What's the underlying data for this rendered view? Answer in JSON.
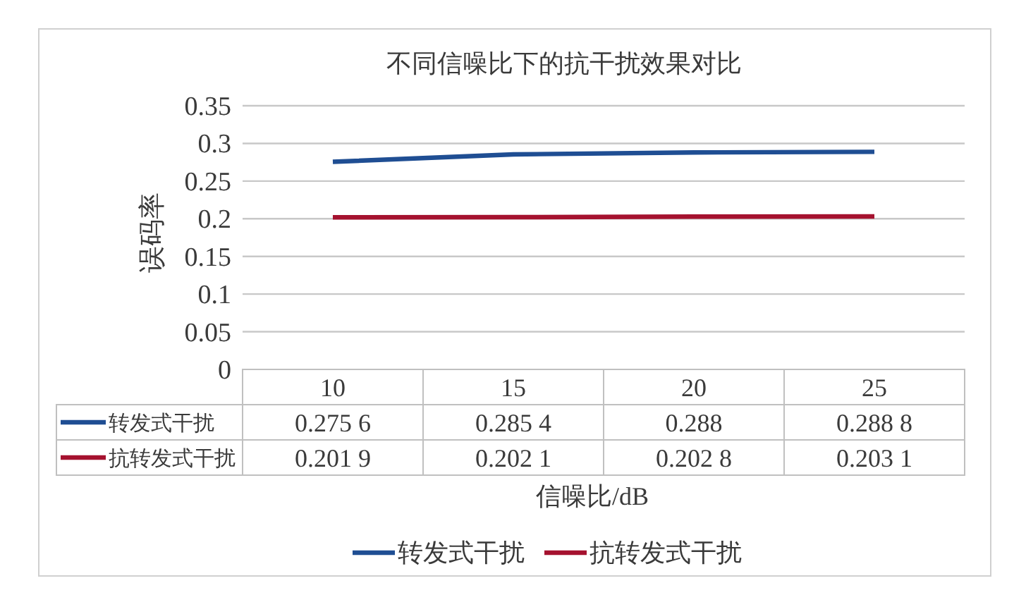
{
  "chart_data": {
    "type": "line",
    "title": "不同信噪比下的抗干扰效果对比",
    "xlabel": "信噪比/dB",
    "ylabel": "误码率",
    "categories": [
      "10",
      "15",
      "20",
      "25"
    ],
    "series": [
      {
        "name": "转发式干扰",
        "color": "#1f4e93",
        "values": [
          0.2756,
          0.2854,
          0.288,
          0.2888
        ]
      },
      {
        "name": "抗转发式干扰",
        "color": "#a5122f",
        "values": [
          0.2019,
          0.2021,
          0.2028,
          0.2031
        ]
      }
    ],
    "ylim": [
      0,
      0.35
    ],
    "yticks": [
      0,
      0.05,
      0.1,
      0.15,
      0.2,
      0.25,
      0.3,
      0.35
    ],
    "grid": "y",
    "legend": "bottom",
    "data_labels": true
  }
}
